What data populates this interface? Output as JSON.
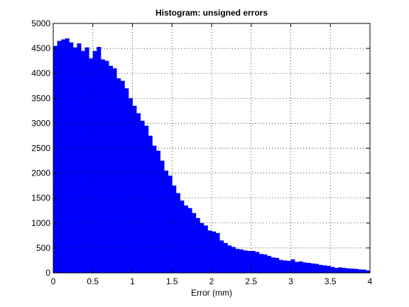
{
  "chart_data": {
    "type": "histogram",
    "title": "Histogram: unsigned errors",
    "x_label": "Error (mm)",
    "bins": [
      0,
      0.05,
      0.1,
      0.15,
      0.2,
      0.25,
      0.3,
      0.35,
      0.4,
      0.45,
      0.5,
      0.55,
      0.6,
      0.65,
      0.7,
      0.75,
      0.8,
      0.85,
      0.9,
      0.95,
      1,
      1.05,
      1.1,
      1.15,
      1.2,
      1.25,
      1.3,
      1.35,
      1.4,
      1.45,
      1.5,
      1.55,
      1.6,
      1.65,
      1.7,
      1.75,
      1.8,
      1.85,
      1.9,
      1.95,
      2,
      2.05,
      2.1,
      2.15,
      2.2,
      2.25,
      2.3,
      2.35,
      2.4,
      2.45,
      2.5,
      2.55,
      2.6,
      2.65,
      2.7,
      2.75,
      2.8,
      2.85,
      2.9,
      2.95,
      3,
      3.05,
      3.1,
      3.15,
      3.2,
      3.25,
      3.3,
      3.35,
      3.4,
      3.45,
      3.5,
      3.55,
      3.6,
      3.65,
      3.7,
      3.75,
      3.8,
      3.85,
      3.9,
      3.95,
      4
    ],
    "values": [
      4550,
      4650,
      4680,
      4700,
      4620,
      4520,
      4600,
      4450,
      4520,
      4300,
      4450,
      4530,
      4280,
      4250,
      4150,
      4100,
      3900,
      3850,
      3700,
      3500,
      3350,
      3200,
      3050,
      2950,
      2750,
      2550,
      2450,
      2250,
      2050,
      1950,
      1750,
      1600,
      1450,
      1350,
      1300,
      1200,
      1100,
      1000,
      950,
      850,
      830,
      800,
      650,
      600,
      550,
      520,
      480,
      470,
      450,
      440,
      440,
      420,
      380,
      370,
      340,
      310,
      300,
      260,
      250,
      240,
      270,
      220,
      230,
      210,
      200,
      190,
      180,
      160,
      150,
      140,
      120,
      100,
      110,
      100,
      90,
      85,
      80,
      70,
      65,
      50
    ],
    "color": "#0000ff",
    "xlim": [
      0,
      4
    ],
    "xticks": [
      0,
      0.5,
      1,
      1.5,
      2,
      2.5,
      3,
      3.5,
      4
    ],
    "ylim": [
      0,
      5000
    ],
    "yticks": [
      0,
      500,
      1000,
      1500,
      2000,
      2500,
      3000,
      3500,
      4000,
      4500,
      5000
    ],
    "grid": true
  }
}
